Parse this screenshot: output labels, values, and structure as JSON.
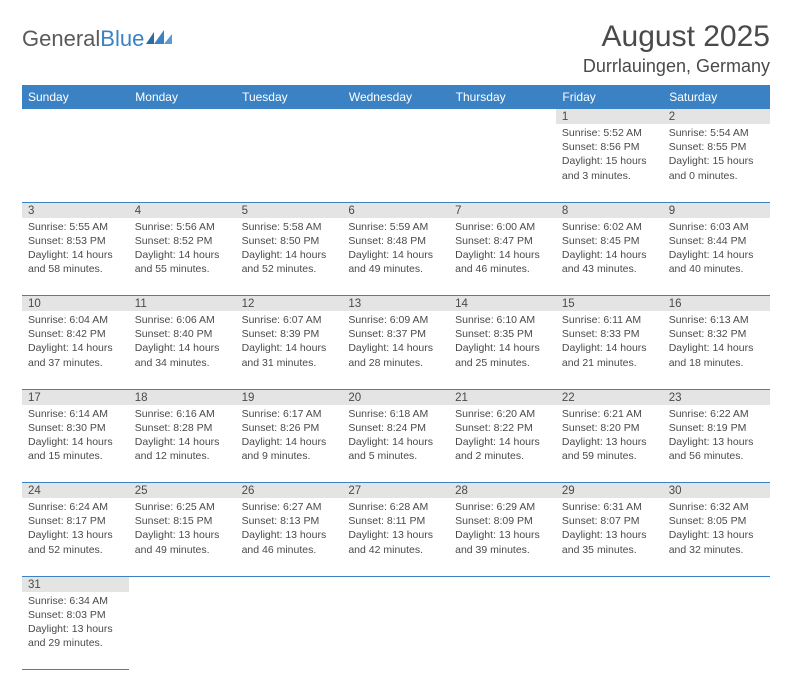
{
  "header": {
    "logo_part1": "General",
    "logo_part2": "Blue",
    "month_title": "August 2025",
    "location": "Durrlauingen, Germany"
  },
  "colors": {
    "header_bg": "#3b82c4",
    "header_text": "#ffffff",
    "daynum_bg": "#e4e4e4",
    "border": "#3b82c4",
    "text": "#4a4a4a",
    "logo_blue": "#3b82c4"
  },
  "weekdays": [
    "Sunday",
    "Monday",
    "Tuesday",
    "Wednesday",
    "Thursday",
    "Friday",
    "Saturday"
  ],
  "weeks": [
    [
      null,
      null,
      null,
      null,
      null,
      {
        "d": "1",
        "sr": "5:52 AM",
        "ss": "8:56 PM",
        "dl": "15 hours and 3 minutes."
      },
      {
        "d": "2",
        "sr": "5:54 AM",
        "ss": "8:55 PM",
        "dl": "15 hours and 0 minutes."
      }
    ],
    [
      {
        "d": "3",
        "sr": "5:55 AM",
        "ss": "8:53 PM",
        "dl": "14 hours and 58 minutes."
      },
      {
        "d": "4",
        "sr": "5:56 AM",
        "ss": "8:52 PM",
        "dl": "14 hours and 55 minutes."
      },
      {
        "d": "5",
        "sr": "5:58 AM",
        "ss": "8:50 PM",
        "dl": "14 hours and 52 minutes."
      },
      {
        "d": "6",
        "sr": "5:59 AM",
        "ss": "8:48 PM",
        "dl": "14 hours and 49 minutes."
      },
      {
        "d": "7",
        "sr": "6:00 AM",
        "ss": "8:47 PM",
        "dl": "14 hours and 46 minutes."
      },
      {
        "d": "8",
        "sr": "6:02 AM",
        "ss": "8:45 PM",
        "dl": "14 hours and 43 minutes."
      },
      {
        "d": "9",
        "sr": "6:03 AM",
        "ss": "8:44 PM",
        "dl": "14 hours and 40 minutes."
      }
    ],
    [
      {
        "d": "10",
        "sr": "6:04 AM",
        "ss": "8:42 PM",
        "dl": "14 hours and 37 minutes."
      },
      {
        "d": "11",
        "sr": "6:06 AM",
        "ss": "8:40 PM",
        "dl": "14 hours and 34 minutes."
      },
      {
        "d": "12",
        "sr": "6:07 AM",
        "ss": "8:39 PM",
        "dl": "14 hours and 31 minutes."
      },
      {
        "d": "13",
        "sr": "6:09 AM",
        "ss": "8:37 PM",
        "dl": "14 hours and 28 minutes."
      },
      {
        "d": "14",
        "sr": "6:10 AM",
        "ss": "8:35 PM",
        "dl": "14 hours and 25 minutes."
      },
      {
        "d": "15",
        "sr": "6:11 AM",
        "ss": "8:33 PM",
        "dl": "14 hours and 21 minutes."
      },
      {
        "d": "16",
        "sr": "6:13 AM",
        "ss": "8:32 PM",
        "dl": "14 hours and 18 minutes."
      }
    ],
    [
      {
        "d": "17",
        "sr": "6:14 AM",
        "ss": "8:30 PM",
        "dl": "14 hours and 15 minutes."
      },
      {
        "d": "18",
        "sr": "6:16 AM",
        "ss": "8:28 PM",
        "dl": "14 hours and 12 minutes."
      },
      {
        "d": "19",
        "sr": "6:17 AM",
        "ss": "8:26 PM",
        "dl": "14 hours and 9 minutes."
      },
      {
        "d": "20",
        "sr": "6:18 AM",
        "ss": "8:24 PM",
        "dl": "14 hours and 5 minutes."
      },
      {
        "d": "21",
        "sr": "6:20 AM",
        "ss": "8:22 PM",
        "dl": "14 hours and 2 minutes."
      },
      {
        "d": "22",
        "sr": "6:21 AM",
        "ss": "8:20 PM",
        "dl": "13 hours and 59 minutes."
      },
      {
        "d": "23",
        "sr": "6:22 AM",
        "ss": "8:19 PM",
        "dl": "13 hours and 56 minutes."
      }
    ],
    [
      {
        "d": "24",
        "sr": "6:24 AM",
        "ss": "8:17 PM",
        "dl": "13 hours and 52 minutes."
      },
      {
        "d": "25",
        "sr": "6:25 AM",
        "ss": "8:15 PM",
        "dl": "13 hours and 49 minutes."
      },
      {
        "d": "26",
        "sr": "6:27 AM",
        "ss": "8:13 PM",
        "dl": "13 hours and 46 minutes."
      },
      {
        "d": "27",
        "sr": "6:28 AM",
        "ss": "8:11 PM",
        "dl": "13 hours and 42 minutes."
      },
      {
        "d": "28",
        "sr": "6:29 AM",
        "ss": "8:09 PM",
        "dl": "13 hours and 39 minutes."
      },
      {
        "d": "29",
        "sr": "6:31 AM",
        "ss": "8:07 PM",
        "dl": "13 hours and 35 minutes."
      },
      {
        "d": "30",
        "sr": "6:32 AM",
        "ss": "8:05 PM",
        "dl": "13 hours and 32 minutes."
      }
    ],
    [
      {
        "d": "31",
        "sr": "6:34 AM",
        "ss": "8:03 PM",
        "dl": "13 hours and 29 minutes."
      },
      null,
      null,
      null,
      null,
      null,
      null
    ]
  ],
  "labels": {
    "sunrise_prefix": "Sunrise: ",
    "sunset_prefix": "Sunset: ",
    "daylight_prefix": "Daylight: "
  }
}
